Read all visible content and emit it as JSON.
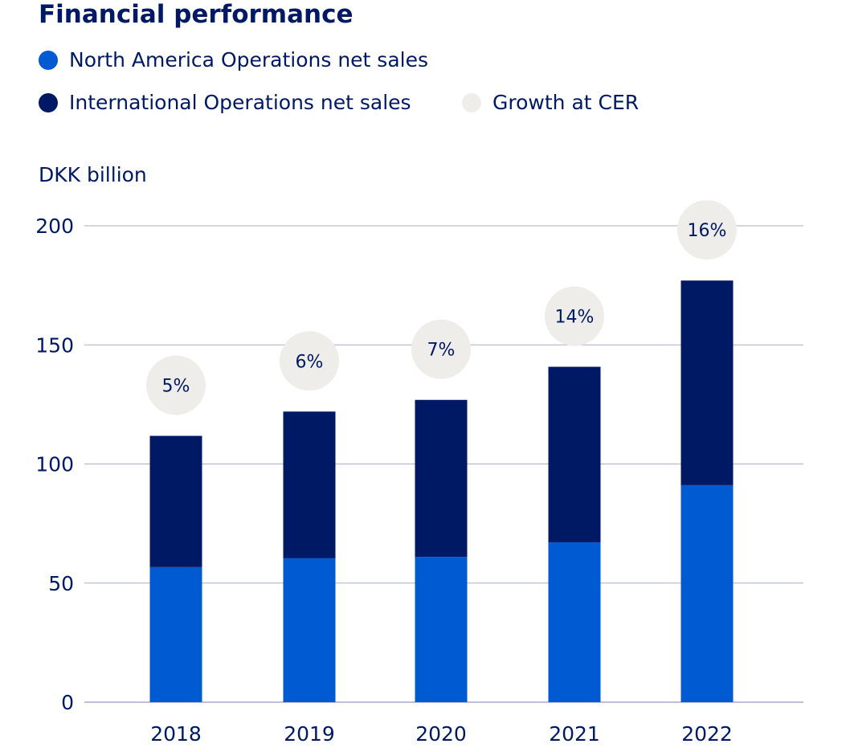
{
  "chart_data": {
    "type": "bar",
    "stacked": true,
    "title": "Financial performance",
    "ylabel": "DKK billion",
    "xlabel": "",
    "ylim": [
      0,
      200
    ],
    "yticks": [
      0,
      50,
      100,
      150,
      200
    ],
    "categories": [
      "2018",
      "2019",
      "2020",
      "2021",
      "2022"
    ],
    "series": [
      {
        "name": "North America Operations net sales",
        "color": "#005AD2",
        "values": [
          56.7,
          60.4,
          61.0,
          67.1,
          91.1
        ]
      },
      {
        "name": "International Operations net sales",
        "color": "#001965",
        "values": [
          55.1,
          61.6,
          65.9,
          73.7,
          85.9
        ]
      }
    ],
    "growth": {
      "name": "Growth at CER",
      "color": "#EEEDEA",
      "labels": [
        "5%",
        "6%",
        "7%",
        "14%",
        "16%"
      ]
    },
    "grid": true,
    "legend_position": "top-left"
  }
}
